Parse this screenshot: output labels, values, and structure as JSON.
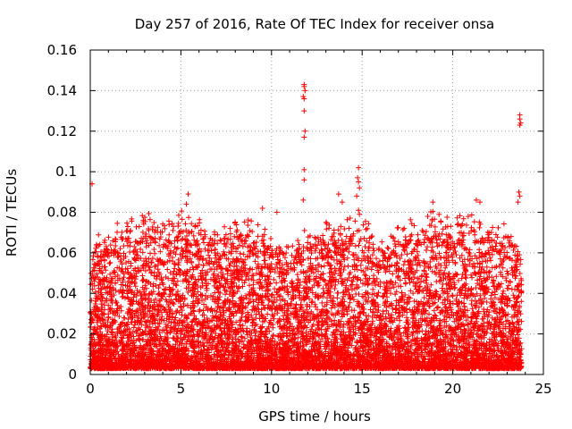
{
  "chart_data": {
    "type": "scatter",
    "title": "Day 257 of 2016, Rate Of TEC Index for receiver onsa",
    "xlabel": "GPS time / hours",
    "ylabel": "ROTI / TECUs",
    "xlim": [
      0,
      25
    ],
    "ylim": [
      0,
      0.16
    ],
    "xticks": [
      0,
      5,
      10,
      15,
      20,
      25
    ],
    "yticks": [
      0,
      0.02,
      0.04,
      0.06,
      0.08,
      0.1,
      0.12,
      0.14,
      0.16
    ],
    "xtick_labels": [
      "0",
      "5",
      "10",
      "15",
      "20",
      "25"
    ],
    "ytick_labels": [
      "0",
      "0.02",
      "0.04",
      "0.06",
      "0.08",
      "0.1",
      "0.12",
      "0.14",
      "0.16"
    ],
    "grid": true,
    "marker": "+",
    "series_color": "#ff0000",
    "envelope": {
      "description": "Dense cloud of points between roughly 0.003 and the upper envelope; values below are representative upper-envelope estimates per hour",
      "hours": [
        0,
        1,
        2,
        3,
        4,
        5,
        6,
        7,
        8,
        9,
        10,
        11,
        12,
        13,
        14,
        15,
        16,
        17,
        18,
        19,
        20,
        21,
        22,
        23,
        23.8
      ],
      "upper": [
        0.07,
        0.072,
        0.078,
        0.082,
        0.08,
        0.085,
        0.078,
        0.072,
        0.078,
        0.08,
        0.07,
        0.068,
        0.075,
        0.078,
        0.08,
        0.082,
        0.068,
        0.075,
        0.08,
        0.083,
        0.078,
        0.085,
        0.076,
        0.075,
        0.065
      ]
    },
    "outliers": [
      {
        "x": 0.1,
        "y": 0.094
      },
      {
        "x": 11.8,
        "y": 0.143
      },
      {
        "x": 11.8,
        "y": 0.142
      },
      {
        "x": 11.85,
        "y": 0.14
      },
      {
        "x": 11.75,
        "y": 0.137
      },
      {
        "x": 11.8,
        "y": 0.136
      },
      {
        "x": 11.8,
        "y": 0.13
      },
      {
        "x": 11.85,
        "y": 0.12
      },
      {
        "x": 11.8,
        "y": 0.117
      },
      {
        "x": 11.8,
        "y": 0.101
      },
      {
        "x": 11.8,
        "y": 0.096
      },
      {
        "x": 11.75,
        "y": 0.086
      },
      {
        "x": 14.8,
        "y": 0.102
      },
      {
        "x": 14.75,
        "y": 0.097
      },
      {
        "x": 14.8,
        "y": 0.095
      },
      {
        "x": 14.85,
        "y": 0.092
      },
      {
        "x": 14.7,
        "y": 0.088
      },
      {
        "x": 14.8,
        "y": 0.081
      },
      {
        "x": 14.85,
        "y": 0.079
      },
      {
        "x": 13.7,
        "y": 0.089
      },
      {
        "x": 13.9,
        "y": 0.085
      },
      {
        "x": 5.4,
        "y": 0.089
      },
      {
        "x": 5.3,
        "y": 0.084
      },
      {
        "x": 9.5,
        "y": 0.082
      },
      {
        "x": 10.3,
        "y": 0.08
      },
      {
        "x": 21.3,
        "y": 0.086
      },
      {
        "x": 21.5,
        "y": 0.085
      },
      {
        "x": 18.9,
        "y": 0.085
      },
      {
        "x": 23.7,
        "y": 0.128
      },
      {
        "x": 23.7,
        "y": 0.126
      },
      {
        "x": 23.75,
        "y": 0.124
      },
      {
        "x": 23.7,
        "y": 0.123
      },
      {
        "x": 23.65,
        "y": 0.09
      },
      {
        "x": 23.7,
        "y": 0.088
      },
      {
        "x": 23.6,
        "y": 0.085
      }
    ]
  }
}
